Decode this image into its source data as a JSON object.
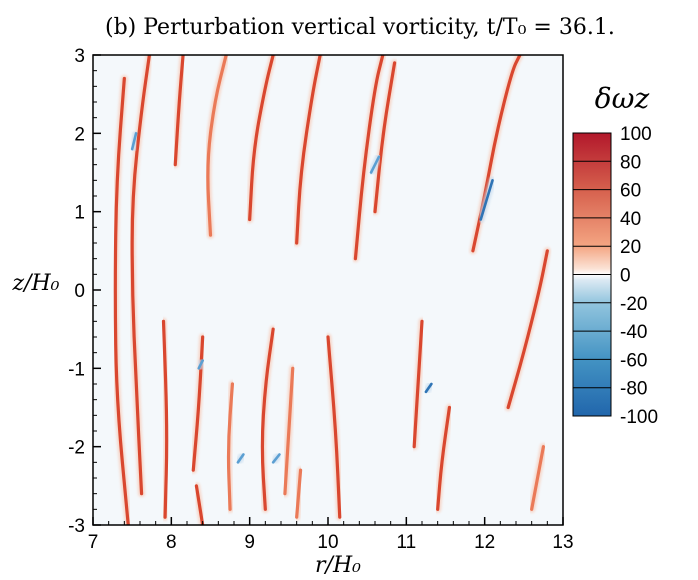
{
  "chart_data": {
    "type": "heatmap",
    "title": "(b) Perturbation vertical vorticity, t/T₀ = 36.1.",
    "xlabel": "r/H₀",
    "ylabel": "z/H₀",
    "xlim": [
      7,
      13
    ],
    "ylim": [
      -3,
      3
    ],
    "xticks": [
      "7",
      "8",
      "9",
      "10",
      "11",
      "12",
      "13"
    ],
    "yticks": [
      "3",
      "2",
      "1",
      "0",
      "-1",
      "-2",
      "-3"
    ],
    "colorbar": {
      "label": "δωz",
      "range": [
        -100,
        100
      ],
      "ticks": [
        "100",
        "80",
        "60",
        "40",
        "20",
        "0",
        "-20",
        "-40",
        "-60",
        "-80",
        "-100"
      ]
    },
    "colors": {
      "positive_strong": "#b2182b",
      "positive_mid": "#e9694a",
      "neutral": "#f4f8fb",
      "negative_mid": "#5aa0d0",
      "negative_strong": "#2166ac"
    },
    "filaments": [
      {
        "sign": 1,
        "strength": 85,
        "points": [
          [
            7.62,
            -2.6
          ],
          [
            7.55,
            -1.2
          ],
          [
            7.5,
            0.0
          ],
          [
            7.5,
            1.2
          ],
          [
            7.62,
            2.3
          ],
          [
            7.72,
            3.0
          ]
        ]
      },
      {
        "sign": 1,
        "strength": 95,
        "points": [
          [
            7.45,
            -3.0
          ],
          [
            7.3,
            -1.4
          ],
          [
            7.28,
            0.0
          ],
          [
            7.3,
            1.4
          ],
          [
            7.4,
            2.7
          ]
        ]
      },
      {
        "sign": 1,
        "strength": 90,
        "points": [
          [
            7.92,
            -2.9
          ],
          [
            7.95,
            -1.8
          ],
          [
            7.9,
            -0.4
          ]
        ]
      },
      {
        "sign": 1,
        "strength": 90,
        "points": [
          [
            8.05,
            1.6
          ],
          [
            8.1,
            2.4
          ],
          [
            8.15,
            3.0
          ]
        ]
      },
      {
        "sign": 1,
        "strength": 80,
        "points": [
          [
            8.5,
            0.7
          ],
          [
            8.45,
            1.6
          ],
          [
            8.55,
            2.4
          ],
          [
            8.7,
            3.0
          ]
        ]
      },
      {
        "sign": 1,
        "strength": 85,
        "points": [
          [
            8.28,
            -2.3
          ],
          [
            8.35,
            -1.5
          ],
          [
            8.4,
            -0.6
          ]
        ]
      },
      {
        "sign": 1,
        "strength": 90,
        "points": [
          [
            8.4,
            -3.0
          ],
          [
            8.32,
            -2.5
          ]
        ]
      },
      {
        "sign": 1,
        "strength": 80,
        "points": [
          [
            8.75,
            -2.8
          ],
          [
            8.72,
            -2.0
          ],
          [
            8.78,
            -1.2
          ]
        ]
      },
      {
        "sign": 1,
        "strength": 85,
        "points": [
          [
            9.0,
            0.9
          ],
          [
            9.05,
            1.8
          ],
          [
            9.2,
            2.6
          ],
          [
            9.3,
            3.0
          ]
        ]
      },
      {
        "sign": 1,
        "strength": 85,
        "points": [
          [
            9.2,
            -2.8
          ],
          [
            9.15,
            -2.0
          ],
          [
            9.2,
            -1.2
          ],
          [
            9.3,
            -0.5
          ]
        ]
      },
      {
        "sign": 1,
        "strength": 80,
        "points": [
          [
            9.45,
            -2.6
          ],
          [
            9.5,
            -1.8
          ],
          [
            9.55,
            -1.0
          ]
        ]
      },
      {
        "sign": 1,
        "strength": 85,
        "points": [
          [
            9.6,
            0.6
          ],
          [
            9.65,
            1.5
          ],
          [
            9.8,
            2.5
          ],
          [
            9.9,
            3.0
          ]
        ]
      },
      {
        "sign": 1,
        "strength": 75,
        "points": [
          [
            9.6,
            -2.9
          ],
          [
            9.65,
            -2.3
          ]
        ]
      },
      {
        "sign": 1,
        "strength": 90,
        "points": [
          [
            10.15,
            -2.9
          ],
          [
            10.1,
            -1.8
          ],
          [
            10.0,
            -0.6
          ]
        ]
      },
      {
        "sign": 1,
        "strength": 85,
        "points": [
          [
            10.35,
            0.4
          ],
          [
            10.45,
            1.5
          ],
          [
            10.6,
            2.6
          ],
          [
            10.7,
            3.0
          ]
        ]
      },
      {
        "sign": 1,
        "strength": 85,
        "points": [
          [
            10.6,
            1.0
          ],
          [
            10.7,
            2.0
          ],
          [
            10.85,
            2.9
          ]
        ]
      },
      {
        "sign": 1,
        "strength": 90,
        "points": [
          [
            11.1,
            -2.0
          ],
          [
            11.15,
            -1.2
          ],
          [
            11.2,
            -0.4
          ]
        ]
      },
      {
        "sign": 1,
        "strength": 95,
        "points": [
          [
            11.4,
            -2.8
          ],
          [
            11.45,
            -2.2
          ],
          [
            11.55,
            -1.5
          ]
        ]
      },
      {
        "sign": 1,
        "strength": 95,
        "points": [
          [
            11.85,
            0.5
          ],
          [
            12.0,
            1.2
          ],
          [
            12.15,
            2.0
          ],
          [
            12.35,
            2.8
          ],
          [
            12.45,
            3.0
          ]
        ]
      },
      {
        "sign": 1,
        "strength": 90,
        "points": [
          [
            12.3,
            -1.5
          ],
          [
            12.5,
            -0.8
          ],
          [
            12.7,
            0.0
          ],
          [
            12.8,
            0.5
          ]
        ]
      },
      {
        "sign": 1,
        "strength": 70,
        "points": [
          [
            12.6,
            -2.8
          ],
          [
            12.75,
            -2.0
          ]
        ]
      },
      {
        "sign": -1,
        "strength": 70,
        "points": [
          [
            7.5,
            1.8
          ],
          [
            7.55,
            2.0
          ]
        ]
      },
      {
        "sign": -1,
        "strength": 75,
        "points": [
          [
            8.35,
            -1.0
          ],
          [
            8.4,
            -0.9
          ]
        ]
      },
      {
        "sign": -1,
        "strength": 75,
        "points": [
          [
            9.3,
            -2.2
          ],
          [
            9.38,
            -2.1
          ]
        ]
      },
      {
        "sign": -1,
        "strength": 80,
        "points": [
          [
            10.55,
            1.5
          ],
          [
            10.65,
            1.7
          ]
        ]
      },
      {
        "sign": -1,
        "strength": 85,
        "points": [
          [
            11.25,
            -1.3
          ],
          [
            11.32,
            -1.2
          ]
        ]
      },
      {
        "sign": -1,
        "strength": 85,
        "points": [
          [
            11.95,
            0.9
          ],
          [
            12.1,
            1.4
          ]
        ]
      },
      {
        "sign": -1,
        "strength": 75,
        "points": [
          [
            8.85,
            -2.2
          ],
          [
            8.92,
            -2.1
          ]
        ]
      }
    ]
  }
}
